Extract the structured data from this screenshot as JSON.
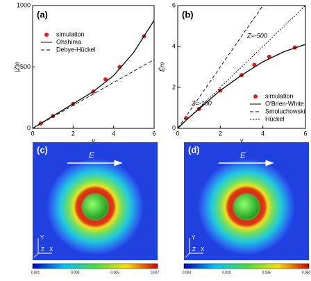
{
  "chart_data": [
    {
      "type": "line",
      "panel_label": "(a)",
      "xlabel": "y",
      "ylabel": "|Z|e",
      "xlim": [
        0,
        6
      ],
      "xticks": [
        0,
        2,
        4,
        6
      ],
      "ylim": [
        0,
        1000
      ],
      "yticks": [
        0,
        500,
        1000
      ],
      "legend": "upper left",
      "series": [
        {
          "name": "simulation",
          "color": "#e02020",
          "style": "markers",
          "x": [
            0.4,
            1,
            2,
            3,
            3.6,
            4.3,
            5.5
          ],
          "values": [
            40,
            100,
            200,
            300,
            400,
            500,
            750
          ]
        },
        {
          "name": "Ohshima",
          "color": "#000000",
          "style": "solid",
          "x": [
            0,
            1,
            2,
            3,
            4,
            5,
            6
          ],
          "values": [
            0,
            100,
            200,
            300,
            430,
            620,
            880
          ]
        },
        {
          "name": "Debye-Hückel",
          "color": "#000000",
          "style": "dashed",
          "x": [
            0,
            6
          ],
          "values": [
            0,
            560
          ]
        }
      ]
    },
    {
      "type": "line",
      "panel_label": "(b)",
      "xlabel": "y",
      "ylabel": "Ẽm",
      "xlim": [
        0,
        6
      ],
      "xticks": [
        0,
        2,
        4,
        6
      ],
      "ylim": [
        0,
        6
      ],
      "yticks": [
        0,
        2,
        4,
        6
      ],
      "legend": "lower right",
      "annotations": [
        "Z=-100",
        "Z=-500"
      ],
      "series": [
        {
          "name": "simulation",
          "color": "#e02020",
          "style": "markers",
          "x": [
            0.4,
            1,
            2,
            3,
            3.6,
            4.3,
            5.5
          ],
          "values": [
            0.5,
            0.95,
            1.85,
            2.6,
            3.1,
            3.5,
            3.95
          ]
        },
        {
          "name": "O'Brien-White",
          "color": "#000000",
          "style": "solid",
          "x": [
            0,
            0.5,
            1,
            2,
            3,
            4,
            5,
            6
          ],
          "values": [
            0,
            0.5,
            0.95,
            1.85,
            2.6,
            3.25,
            3.75,
            4.1
          ]
        },
        {
          "name": "Smoluchowski",
          "color": "#000000",
          "style": "dashed",
          "x": [
            0,
            4
          ],
          "values": [
            0,
            6
          ]
        },
        {
          "name": "Hückel",
          "color": "#000000",
          "style": "dotted",
          "x": [
            0,
            6
          ],
          "values": [
            0,
            6
          ]
        }
      ]
    }
  ],
  "images": [
    {
      "panel_label": "(c)",
      "field": "E",
      "axes": [
        "Y",
        "Z",
        "X"
      ],
      "colorbar_ticks": [
        "0.001",
        "0.003",
        "0.005",
        "0.007"
      ]
    },
    {
      "panel_label": "(d)",
      "field": "E",
      "axes": [
        "Y",
        "Z",
        "X"
      ],
      "colorbar_ticks": [
        "0.004",
        "0.020",
        "0.035",
        "0.050"
      ]
    }
  ]
}
